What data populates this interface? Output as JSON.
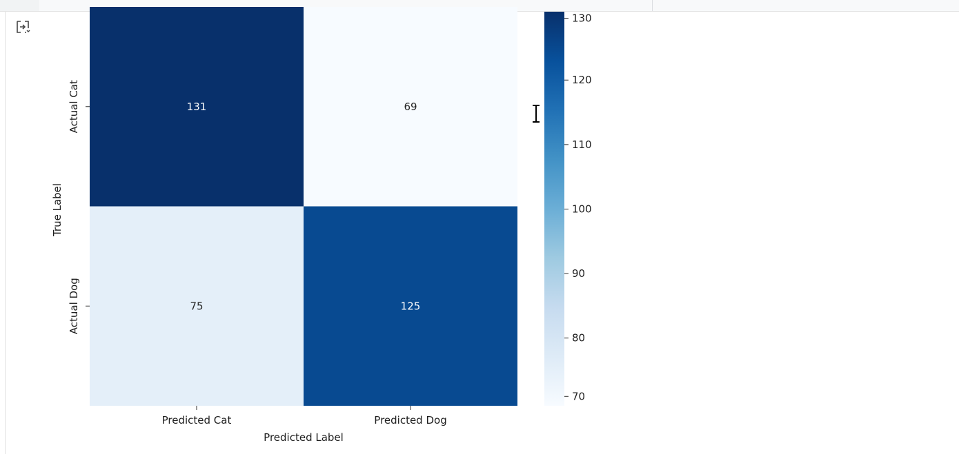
{
  "output_icon": "output-toggle-icon",
  "cursor_icon": "text-cursor-icon",
  "chart_data": {
    "type": "heatmap",
    "title": "",
    "xlabel": "Predicted Label",
    "ylabel": "True Label",
    "x_categories": [
      "Predicted Cat",
      "Predicted Dog"
    ],
    "y_categories": [
      "Actual Cat",
      "Actual Dog"
    ],
    "values": [
      [
        131,
        69
      ],
      [
        75,
        125
      ]
    ],
    "colormap": "Blues",
    "colorbar": {
      "range": [
        69,
        131
      ],
      "ticks": [
        70,
        80,
        90,
        100,
        110,
        120,
        130
      ]
    },
    "colors": {
      "low": "#f7fbff",
      "high": "#08306b",
      "text_light": "#ffffff",
      "text_dark": "#262626"
    }
  }
}
